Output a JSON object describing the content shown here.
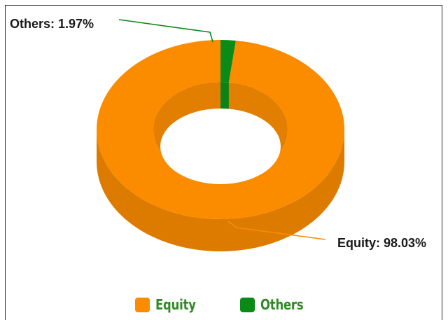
{
  "chart_data": {
    "type": "pie",
    "variant": "donut-3d",
    "categories": [
      "Equity",
      "Others"
    ],
    "values": [
      98.03,
      1.97
    ],
    "unit": "%",
    "colors": [
      "#FB8C00",
      "#0A8A16"
    ],
    "data_labels": [
      "Equity: 98.03%",
      "Others: 1.97%"
    ],
    "legend": {
      "placement": "bottom-center",
      "items": [
        {
          "label": "Equity",
          "color": "#FB8C00"
        },
        {
          "label": "Others",
          "color": "#0A8A16"
        }
      ]
    }
  }
}
